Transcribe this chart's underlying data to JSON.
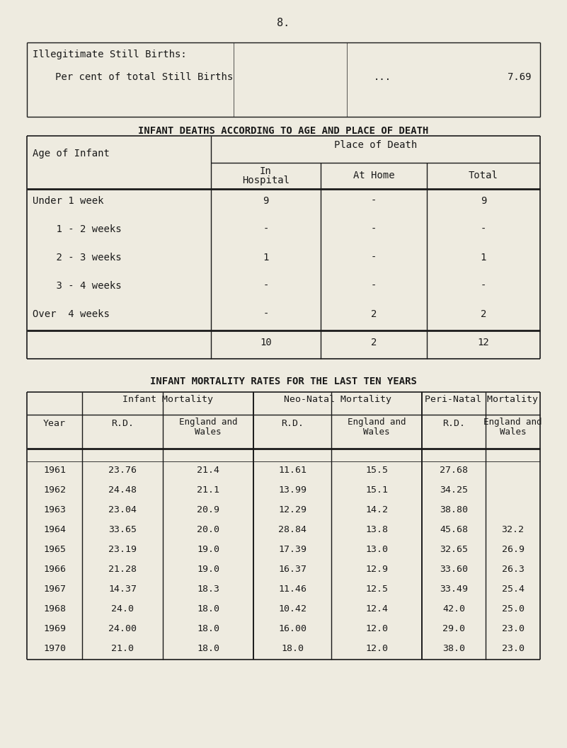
{
  "page_number": "8.",
  "background_color": "#eeebe0",
  "text_color": "#1a1a1a",
  "section1_title": "Illegitimate Still Births:",
  "section1_row": "Per cent of total Still Births",
  "section1_dots": "...",
  "section1_value": "7.69",
  "table1_title": "INFANT DEATHS ACCORDING TO AGE AND PLACE OF DEATH",
  "table2_title": "INFANT MORTALITY RATES FOR THE LAST TEN YEARS",
  "table1_rows": [
    [
      "Under 1 week",
      "9",
      "-",
      "9"
    ],
    [
      "    1 - 2 weeks",
      "-",
      "-",
      "-"
    ],
    [
      "    2 - 3 weeks",
      "1",
      "-",
      "1"
    ],
    [
      "    3 - 4 weeks",
      "-",
      "-",
      "-"
    ],
    [
      "Over  4 weeks",
      "-",
      "2",
      "2"
    ],
    [
      "",
      "10",
      "2",
      "12"
    ]
  ],
  "table2_data": [
    [
      "1961",
      "23.76",
      "21.4",
      "11.61",
      "15.5",
      "27.68",
      ""
    ],
    [
      "1962",
      "24.48",
      "21.1",
      "13.99",
      "15.1",
      "34.25",
      ""
    ],
    [
      "1963",
      "23.04",
      "20.9",
      "12.29",
      "14.2",
      "38.80",
      ""
    ],
    [
      "1964",
      "33.65",
      "20.0",
      "28.84",
      "13.8",
      "45.68",
      "32.2"
    ],
    [
      "1965",
      "23.19",
      "19.0",
      "17.39",
      "13.0",
      "32.65",
      "26.9"
    ],
    [
      "1966",
      "21.28",
      "19.0",
      "16.37",
      "12.9",
      "33.60",
      "26.3"
    ],
    [
      "1967",
      "14.37",
      "18.3",
      "11.46",
      "12.5",
      "33.49",
      "25.4"
    ],
    [
      "1968",
      "24.0",
      "18.0",
      "10.42",
      "12.4",
      "42.0",
      "25.0"
    ],
    [
      "1969",
      "24.00",
      "18.0",
      "16.00",
      "12.0",
      "29.0",
      "23.0"
    ],
    [
      "1970",
      "21.0",
      "18.0",
      "18.0",
      "12.0",
      "38.0",
      "23.0"
    ]
  ]
}
